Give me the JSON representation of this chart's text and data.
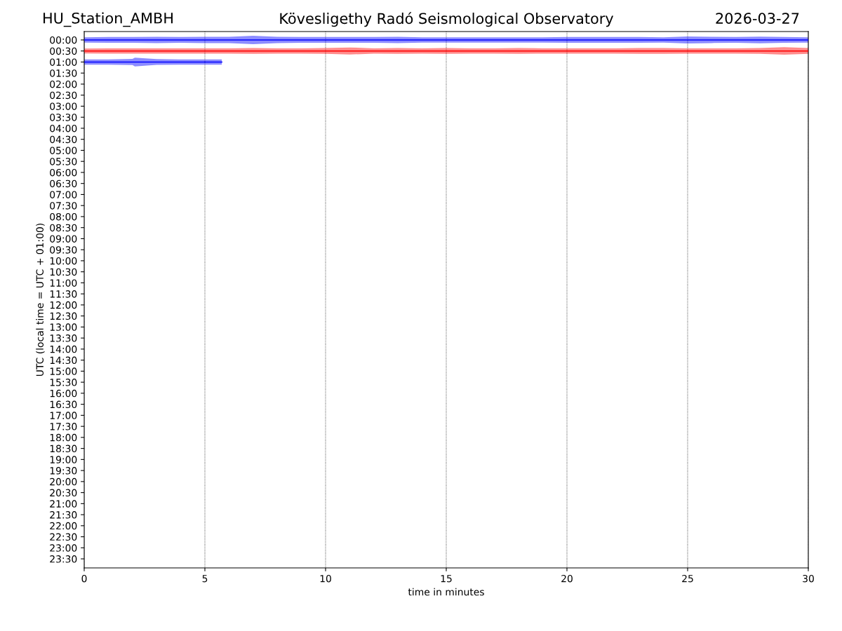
{
  "chart_data": {
    "type": "line",
    "title": "Kövesligethy Radó Seismological Observatory",
    "annotations": [
      "HU_Station_AMBH",
      "2026-03-27"
    ],
    "xlabel": "time in minutes",
    "ylabel": "UTC (local time = UTC + 01:00)",
    "xlim": [
      0,
      30
    ],
    "xticks": [
      0,
      5,
      10,
      15,
      20,
      25,
      30
    ],
    "ylim": [
      23.91,
      -0.38
    ],
    "yticks": [
      {
        "value": 0,
        "label": "00:00"
      },
      {
        "value": 0.5,
        "label": "00:30"
      },
      {
        "value": 1,
        "label": "01:00"
      },
      {
        "value": 1.5,
        "label": "01:30"
      },
      {
        "value": 2,
        "label": "02:00"
      },
      {
        "value": 2.5,
        "label": "02:30"
      },
      {
        "value": 3,
        "label": "03:00"
      },
      {
        "value": 3.5,
        "label": "03:30"
      },
      {
        "value": 4,
        "label": "04:00"
      },
      {
        "value": 4.5,
        "label": "04:30"
      },
      {
        "value": 5,
        "label": "05:00"
      },
      {
        "value": 5.5,
        "label": "05:30"
      },
      {
        "value": 6,
        "label": "06:00"
      },
      {
        "value": 6.5,
        "label": "06:30"
      },
      {
        "value": 7,
        "label": "07:00"
      },
      {
        "value": 7.5,
        "label": "07:30"
      },
      {
        "value": 8,
        "label": "08:00"
      },
      {
        "value": 8.5,
        "label": "08:30"
      },
      {
        "value": 9,
        "label": "09:00"
      },
      {
        "value": 9.5,
        "label": "09:30"
      },
      {
        "value": 10,
        "label": "10:00"
      },
      {
        "value": 10.5,
        "label": "10:30"
      },
      {
        "value": 11,
        "label": "11:00"
      },
      {
        "value": 11.5,
        "label": "11:30"
      },
      {
        "value": 12,
        "label": "12:00"
      },
      {
        "value": 12.5,
        "label": "12:30"
      },
      {
        "value": 13,
        "label": "13:00"
      },
      {
        "value": 13.5,
        "label": "13:30"
      },
      {
        "value": 14,
        "label": "14:00"
      },
      {
        "value": 14.5,
        "label": "14:30"
      },
      {
        "value": 15,
        "label": "15:00"
      },
      {
        "value": 15.5,
        "label": "15:30"
      },
      {
        "value": 16,
        "label": "16:00"
      },
      {
        "value": 16.5,
        "label": "16:30"
      },
      {
        "value": 17,
        "label": "17:00"
      },
      {
        "value": 17.5,
        "label": "17:30"
      },
      {
        "value": 18,
        "label": "18:00"
      },
      {
        "value": 18.5,
        "label": "18:30"
      },
      {
        "value": 19,
        "label": "19:00"
      },
      {
        "value": 19.5,
        "label": "19:30"
      },
      {
        "value": 20,
        "label": "20:00"
      },
      {
        "value": 20.5,
        "label": "20:30"
      },
      {
        "value": 21,
        "label": "21:00"
      },
      {
        "value": 21.5,
        "label": "21:30"
      },
      {
        "value": 22,
        "label": "22:00"
      },
      {
        "value": 22.5,
        "label": "22:30"
      },
      {
        "value": 23,
        "label": "23:00"
      },
      {
        "value": 23.5,
        "label": "23:30"
      }
    ],
    "grid": "x",
    "series": [
      {
        "color": "#0000ff",
        "x": [
          0,
          1,
          2,
          3,
          4,
          5,
          6,
          7,
          8,
          9,
          10,
          11,
          12,
          13,
          14,
          15,
          16,
          17,
          18,
          19,
          20,
          21,
          22,
          23,
          24,
          25,
          26,
          27,
          28,
          29,
          30
        ],
        "values": [
          0,
          0,
          0,
          0,
          0,
          0,
          0,
          0,
          0,
          0,
          0,
          0,
          0,
          0,
          0,
          0,
          0,
          0,
          0,
          0,
          0,
          0,
          0,
          0,
          0,
          0,
          0,
          0,
          0,
          0,
          0
        ],
        "lower": [
          -0.12,
          -0.13,
          -0.13,
          -0.14,
          -0.13,
          -0.14,
          -0.14,
          -0.19,
          -0.14,
          -0.13,
          -0.13,
          -0.13,
          -0.13,
          -0.14,
          -0.12,
          -0.12,
          -0.12,
          -0.12,
          -0.12,
          -0.12,
          -0.13,
          -0.13,
          -0.13,
          -0.13,
          -0.12,
          -0.16,
          -0.14,
          -0.13,
          -0.15,
          -0.13,
          -0.12
        ],
        "upper": [
          0.12,
          0.13,
          0.13,
          0.14,
          0.13,
          0.14,
          0.14,
          0.19,
          0.14,
          0.13,
          0.13,
          0.13,
          0.13,
          0.14,
          0.12,
          0.12,
          0.12,
          0.12,
          0.12,
          0.12,
          0.13,
          0.13,
          0.13,
          0.13,
          0.12,
          0.16,
          0.14,
          0.13,
          0.15,
          0.13,
          0.12
        ]
      },
      {
        "color": "#ff0000",
        "x": [
          0,
          1,
          2,
          3,
          4,
          5,
          6,
          7,
          8,
          9,
          10,
          11,
          12,
          13,
          14,
          15,
          16,
          17,
          18,
          19,
          20,
          21,
          22,
          23,
          24,
          25,
          26,
          27,
          28,
          29,
          30
        ],
        "values": [
          0.5,
          0.5,
          0.5,
          0.5,
          0.5,
          0.5,
          0.5,
          0.5,
          0.5,
          0.5,
          0.5,
          0.5,
          0.5,
          0.5,
          0.5,
          0.5,
          0.5,
          0.5,
          0.5,
          0.5,
          0.5,
          0.5,
          0.5,
          0.5,
          0.5,
          0.5,
          0.5,
          0.5,
          0.5,
          0.5,
          0.5
        ],
        "lower": [
          0.39,
          0.38,
          0.38,
          0.38,
          0.38,
          0.38,
          0.38,
          0.37,
          0.38,
          0.38,
          0.37,
          0.34,
          0.38,
          0.37,
          0.38,
          0.37,
          0.38,
          0.38,
          0.37,
          0.38,
          0.38,
          0.38,
          0.38,
          0.37,
          0.37,
          0.38,
          0.38,
          0.38,
          0.37,
          0.33,
          0.37
        ],
        "upper": [
          0.61,
          0.62,
          0.62,
          0.62,
          0.62,
          0.62,
          0.62,
          0.63,
          0.62,
          0.62,
          0.63,
          0.66,
          0.62,
          0.63,
          0.62,
          0.63,
          0.62,
          0.62,
          0.63,
          0.62,
          0.62,
          0.62,
          0.62,
          0.63,
          0.63,
          0.62,
          0.62,
          0.62,
          0.63,
          0.67,
          0.63
        ]
      },
      {
        "color": "#0000ff",
        "x": [
          0,
          1,
          2,
          2.1,
          3,
          4,
          5,
          5.7
        ],
        "values": [
          1,
          1,
          1,
          1,
          1,
          1,
          1,
          1
        ],
        "lower": [
          0.88,
          0.88,
          0.86,
          0.8,
          0.87,
          0.88,
          0.88,
          0.88
        ],
        "upper": [
          1.12,
          1.12,
          1.14,
          1.2,
          1.13,
          1.12,
          1.12,
          1.12
        ]
      }
    ]
  }
}
